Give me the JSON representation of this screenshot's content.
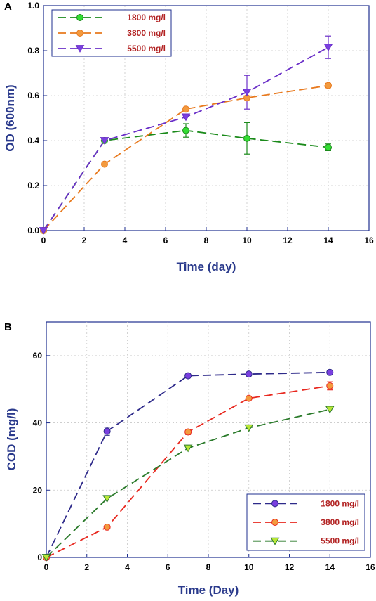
{
  "chart_data": [
    {
      "panel_label": "A",
      "type": "line",
      "xlabel": "Time (day)",
      "ylabel": "OD (600nm)",
      "xlim": [
        0,
        16
      ],
      "ylim": [
        0,
        1.0
      ],
      "xticks": [
        "0",
        "2",
        "4",
        "6",
        "8",
        "10",
        "12",
        "14",
        "16"
      ],
      "yticks": [
        "0.0",
        "0.2",
        "0.4",
        "0.6",
        "0.8",
        "1.0"
      ],
      "grid": true,
      "legend_position": "top-left",
      "x": [
        0,
        3,
        7,
        10,
        14
      ],
      "series": [
        {
          "name": "1800 mg/l",
          "color": "#1a8a1a",
          "marker": "circle",
          "fill": "#33dd33",
          "values": [
            0,
            0.4,
            0.445,
            0.41,
            0.37
          ],
          "errors": [
            0,
            0,
            0.03,
            0.07,
            0.015
          ]
        },
        {
          "name": "3800 mg/l",
          "color": "#e87a1f",
          "marker": "circle",
          "fill": "#f39a3e",
          "values": [
            0,
            0.295,
            0.54,
            0.59,
            0.645
          ],
          "errors": [
            0,
            0,
            0,
            0,
            0.01
          ]
        },
        {
          "name": "5500 mg/l",
          "color": "#6a2fc8",
          "marker": "triangle-down",
          "fill": "#7a3fe0",
          "values": [
            0,
            0.4,
            0.505,
            0.615,
            0.815
          ],
          "errors": [
            0,
            0,
            0,
            0.075,
            0.05
          ]
        }
      ]
    },
    {
      "panel_label": "B",
      "type": "line",
      "xlabel": "Time (Day)",
      "ylabel": "COD (mg/l)",
      "xlim": [
        0,
        16
      ],
      "ylim": [
        0,
        70
      ],
      "xticks": [
        "0",
        "2",
        "4",
        "6",
        "8",
        "10",
        "12",
        "14",
        "16"
      ],
      "yticks": [
        "0",
        "20",
        "40",
        "60"
      ],
      "ytick_values": [
        0,
        20,
        40,
        60
      ],
      "grid": true,
      "legend_position": "bottom-right",
      "x": [
        0,
        3,
        7,
        10,
        14
      ],
      "series": [
        {
          "name": "1800 mg/l",
          "color": "#2e2a8a",
          "marker": "circle",
          "fill": "#7a3fe0",
          "values": [
            0,
            37.5,
            54,
            54.5,
            55
          ],
          "errors": [
            0,
            1.2,
            0,
            0,
            0
          ]
        },
        {
          "name": "3800 mg/l",
          "color": "#e8281f",
          "marker": "circle",
          "fill": "#f39a3e",
          "values": [
            0,
            9,
            37.3,
            47.3,
            51
          ],
          "errors": [
            0,
            0,
            0.8,
            0,
            1.2
          ]
        },
        {
          "name": "5500 mg/l",
          "color": "#2a7a2a",
          "marker": "triangle-down",
          "fill": "#b8e636",
          "values": [
            0,
            17.5,
            32.5,
            38.5,
            44
          ],
          "errors": [
            0,
            0,
            0,
            0,
            0
          ]
        }
      ]
    }
  ]
}
